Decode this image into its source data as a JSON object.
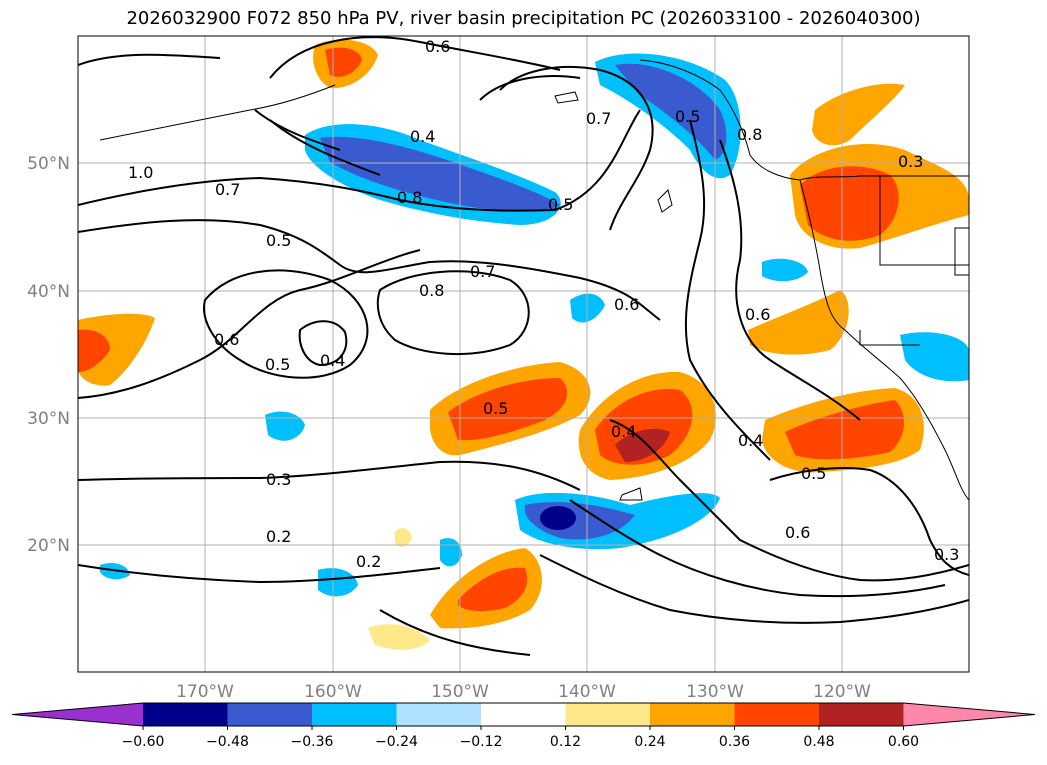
{
  "figure": {
    "title": "2026032900 F072 850 hPa PV, river basin precipitation PC (2026033100 - 2026040300)"
  },
  "map": {
    "latitude_labels": [
      "50°N",
      "40°N",
      "30°N",
      "20°N"
    ],
    "longitude_labels": [
      "170°W",
      "160°W",
      "150°W",
      "140°W",
      "130°W",
      "120°W"
    ],
    "contour_labels": [
      "0.6",
      "0.4",
      "0.7",
      "0.8",
      "0.5",
      "1.0",
      "0.7",
      "0.5",
      "0.7",
      "0.8",
      "0.6",
      "0.6",
      "0.5",
      "0.4",
      "0.5",
      "0.4",
      "0.3",
      "0.4",
      "0.5",
      "0.6",
      "0.2",
      "0.2",
      "0.3",
      "0.3",
      "0.6",
      "0.8",
      "0.5"
    ]
  },
  "colorbar": {
    "ticks": [
      "−0.60",
      "−0.48",
      "−0.36",
      "−0.24",
      "−0.12",
      "0.12",
      "0.24",
      "0.36",
      "0.48",
      "0.60"
    ],
    "colors": [
      "#9b30d0",
      "#00008b",
      "#3a5bd0",
      "#00bfff",
      "#b0e2ff",
      "#ffffff",
      "#ffe88a",
      "#ffa500",
      "#ff4500",
      "#b22222",
      "#ff88aa"
    ]
  }
}
